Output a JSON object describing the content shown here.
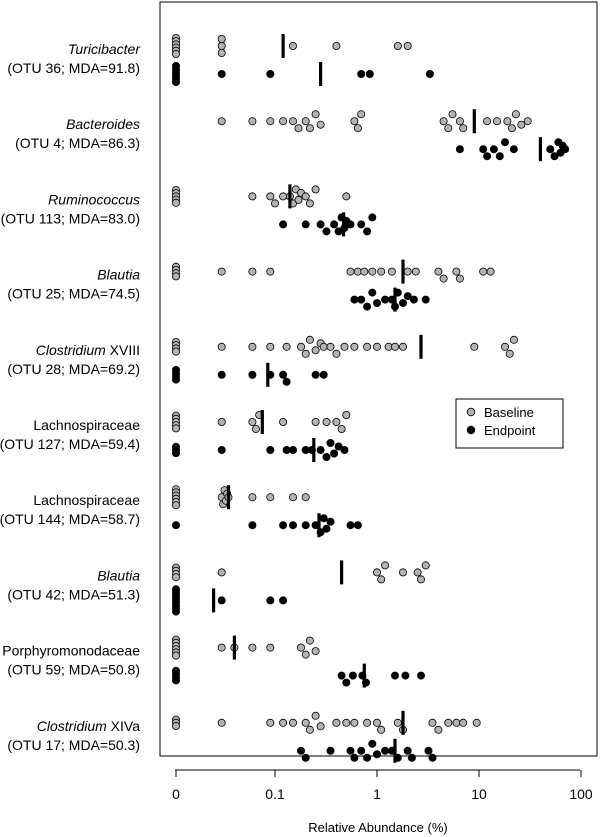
{
  "chart_data": {
    "type": "scatter",
    "xlabel": "Relative Abundance (%)",
    "x_scale": "log",
    "x_zero_marker": true,
    "x_ticks": [
      "0",
      "0.1",
      "1",
      "10",
      "100"
    ],
    "legend": {
      "placement": "right-middle",
      "entries": [
        "Baseline",
        "Endpoint"
      ]
    },
    "series": [
      {
        "name": "Baseline",
        "color": "#b3b3b3",
        "outline": "#000000"
      },
      {
        "name": "Endpoint",
        "color": "#000000",
        "outline": "#000000"
      }
    ],
    "groups": [
      {
        "taxon": "Turicibacter",
        "italic": true,
        "suffix": "",
        "otu": "(OTU 36; MDA=91.8)",
        "baseline": {
          "zeros": 6,
          "values": [
            0.03,
            0.03,
            0.03,
            0.15,
            0.4,
            1.6,
            2.0
          ],
          "median": 0.12
        },
        "endpoint": {
          "zeros": 6,
          "values": [
            0.03,
            0.09,
            0.7,
            0.85,
            3.3
          ],
          "median": 0.28
        }
      },
      {
        "taxon": "Bacteroides",
        "italic": true,
        "suffix": "",
        "otu": "(OTU 4; MDA=86.3)",
        "baseline": {
          "zeros": 0,
          "values": [
            0.03,
            0.06,
            0.09,
            0.12,
            0.15,
            0.17,
            0.2,
            0.22,
            0.25,
            0.28,
            0.6,
            0.65,
            0.7,
            4.5,
            5.0,
            5.5,
            6.5,
            7.0,
            12,
            15,
            19,
            21,
            23,
            26,
            30
          ],
          "median": 9.0
        },
        "endpoint": {
          "zeros": 0,
          "values": [
            6.5,
            11,
            12,
            14,
            16,
            18,
            22,
            50,
            55,
            60,
            63,
            66,
            70
          ],
          "median": 40
        }
      },
      {
        "taxon": "Ruminococcus",
        "italic": true,
        "suffix": "",
        "otu": "(OTU 113; MDA=83.0)",
        "baseline": {
          "zeros": 5,
          "values": [
            0.06,
            0.09,
            0.1,
            0.12,
            0.14,
            0.15,
            0.16,
            0.17,
            0.18,
            0.2,
            0.22,
            0.25,
            0.5
          ],
          "median": 0.14
        },
        "endpoint": {
          "zeros": 0,
          "values": [
            0.12,
            0.2,
            0.28,
            0.32,
            0.38,
            0.42,
            0.45,
            0.48,
            0.5,
            0.55,
            0.7,
            0.8,
            0.9
          ],
          "median": 0.47
        }
      },
      {
        "taxon": "Blautia",
        "italic": true,
        "suffix": "",
        "otu": "(OTU 25; MDA=74.5)",
        "baseline": {
          "zeros": 4,
          "values": [
            0.03,
            0.06,
            0.09,
            0.55,
            0.65,
            0.75,
            0.9,
            1.1,
            1.4,
            2.0,
            2.4,
            4.0,
            4.5,
            6.0,
            6.5,
            11,
            13
          ],
          "median": 1.8
        },
        "endpoint": {
          "zeros": 0,
          "values": [
            0.6,
            0.7,
            0.8,
            0.9,
            1.0,
            1.2,
            1.4,
            1.5,
            1.6,
            1.8,
            2.0,
            2.3,
            3.0
          ],
          "median": 1.5
        }
      },
      {
        "taxon": "Clostridium",
        "italic": true,
        "suffix": " XVIII",
        "otu": "(OTU 28; MDA=69.2)",
        "baseline": {
          "zeros": 4,
          "values": [
            0.03,
            0.06,
            0.09,
            0.13,
            0.18,
            0.2,
            0.22,
            0.25,
            0.28,
            0.3,
            0.35,
            0.4,
            0.48,
            0.6,
            0.8,
            1.0,
            1.3,
            1.5,
            1.8,
            9.0,
            18,
            20,
            22
          ],
          "median": 2.7
        },
        "endpoint": {
          "zeros": 4,
          "values": [
            0.03,
            0.06,
            0.09,
            0.12,
            0.13,
            0.25,
            0.3
          ],
          "median": 0.085
        }
      },
      {
        "taxon": "Lachnospiraceae",
        "italic": false,
        "suffix": "",
        "otu": "(OTU 127; MDA=59.4)",
        "baseline": {
          "zeros": 5,
          "values": [
            0.03,
            0.06,
            0.065,
            0.07,
            0.12,
            0.25,
            0.32,
            0.4,
            0.45,
            0.5
          ],
          "median": 0.075
        },
        "endpoint": {
          "zeros": 3,
          "values": [
            0.03,
            0.09,
            0.13,
            0.15,
            0.2,
            0.23,
            0.28,
            0.32,
            0.35,
            0.38,
            0.42,
            0.48
          ],
          "median": 0.24
        }
      },
      {
        "taxon": "Lachnospiraceae",
        "italic": false,
        "suffix": "",
        "otu": "(OTU 144; MDA=58.7)",
        "baseline": {
          "zeros": 6,
          "values": [
            0.03,
            0.031,
            0.032,
            0.033,
            0.034,
            0.035,
            0.06,
            0.09,
            0.15,
            0.2
          ],
          "median": 0.035
        },
        "endpoint": {
          "zeros": 1,
          "values": [
            0.06,
            0.12,
            0.15,
            0.2,
            0.25,
            0.28,
            0.3,
            0.32,
            0.35,
            0.55,
            0.65
          ],
          "median": 0.27
        }
      },
      {
        "taxon": "Blautia",
        "italic": true,
        "suffix": "",
        "otu": "(OTU 42; MDA=51.3)",
        "baseline": {
          "zeros": 4,
          "values": [
            0.03,
            1.0,
            1.1,
            1.2,
            1.8,
            2.5,
            2.7,
            3.0
          ],
          "median": 0.45
        },
        "endpoint": {
          "zeros": 8,
          "values": [
            0.03,
            0.09,
            0.12
          ],
          "median": 0.025
        }
      },
      {
        "taxon": "Porphyromonodaceae",
        "italic": false,
        "suffix": "",
        "otu": "(OTU 59; MDA=50.8)",
        "baseline": {
          "zeros": 6,
          "values": [
            0.03,
            0.04,
            0.06,
            0.09,
            0.18,
            0.2,
            0.22,
            0.25
          ],
          "median": 0.04
        },
        "endpoint": {
          "zeros": 4,
          "values": [
            0.45,
            0.5,
            0.58,
            0.72,
            0.78,
            1.5,
            1.9,
            2.7
          ],
          "median": 0.75
        }
      },
      {
        "taxon": "Clostridium",
        "italic": true,
        "suffix": " XIVa",
        "otu": "(OTU 17; MDA=50.3)",
        "baseline": {
          "zeros": 3,
          "values": [
            0.03,
            0.09,
            0.12,
            0.15,
            0.2,
            0.22,
            0.25,
            0.28,
            0.4,
            0.5,
            0.6,
            0.8,
            1.0,
            1.1,
            1.6,
            1.8,
            3.5,
            4.0,
            5.0,
            6.0,
            7.0,
            9.5
          ],
          "median": 1.8
        },
        "endpoint": {
          "zeros": 0,
          "values": [
            0.18,
            0.2,
            0.35,
            0.55,
            0.6,
            0.7,
            0.8,
            0.9,
            1.0,
            1.2,
            1.4,
            1.6,
            2.0,
            2.2,
            3.2,
            3.5
          ],
          "median": 1.5
        }
      }
    ]
  }
}
